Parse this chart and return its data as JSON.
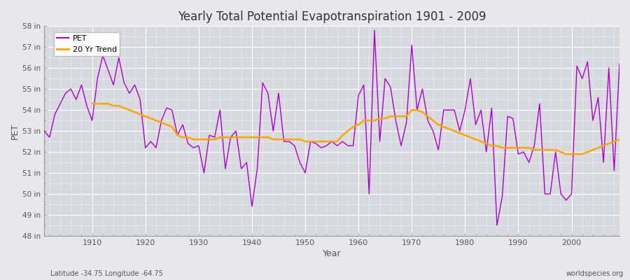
{
  "title": "Yearly Total Potential Evapotranspiration 1901 - 2009",
  "xlabel": "Year",
  "ylabel": "PET",
  "subtitle_left": "Latitude -34.75 Longitude -64.75",
  "subtitle_right": "worldspecies.org",
  "ylim": [
    48,
    58
  ],
  "xtick_years": [
    1910,
    1920,
    1930,
    1940,
    1950,
    1960,
    1970,
    1980,
    1990,
    2000
  ],
  "pet_color": "#AA00CC",
  "trend_color": "#FFA500",
  "bg_color": "#E8E8EC",
  "plot_bg_color": "#D8D8DF",
  "pet_years": [
    1901,
    1902,
    1903,
    1904,
    1905,
    1906,
    1907,
    1908,
    1909,
    1910,
    1911,
    1912,
    1913,
    1914,
    1915,
    1916,
    1917,
    1918,
    1919,
    1920,
    1921,
    1922,
    1923,
    1924,
    1925,
    1926,
    1927,
    1928,
    1929,
    1930,
    1931,
    1932,
    1933,
    1934,
    1935,
    1936,
    1937,
    1938,
    1939,
    1940,
    1941,
    1942,
    1943,
    1944,
    1945,
    1946,
    1947,
    1948,
    1949,
    1950,
    1951,
    1952,
    1953,
    1954,
    1955,
    1956,
    1957,
    1958,
    1959,
    1960,
    1961,
    1962,
    1963,
    1964,
    1965,
    1966,
    1967,
    1968,
    1969,
    1970,
    1971,
    1972,
    1973,
    1974,
    1975,
    1976,
    1977,
    1978,
    1979,
    1980,
    1981,
    1982,
    1983,
    1984,
    1985,
    1986,
    1987,
    1988,
    1989,
    1990,
    1991,
    1992,
    1993,
    1994,
    1995,
    1996,
    1997,
    1998,
    1999,
    2000,
    2001,
    2002,
    2003,
    2004,
    2005,
    2006,
    2007,
    2008,
    2009
  ],
  "pet_values": [
    53.0,
    52.7,
    53.8,
    54.3,
    54.8,
    55.0,
    54.5,
    55.2,
    54.2,
    53.5,
    55.5,
    56.6,
    55.9,
    55.2,
    56.5,
    55.3,
    54.8,
    55.2,
    54.5,
    52.2,
    52.5,
    52.2,
    53.5,
    54.1,
    54.0,
    52.8,
    53.3,
    52.4,
    52.2,
    52.3,
    51.0,
    52.8,
    52.7,
    54.0,
    51.2,
    52.7,
    53.0,
    51.2,
    51.5,
    49.4,
    51.2,
    55.3,
    54.8,
    53.0,
    54.8,
    52.5,
    52.5,
    52.3,
    51.5,
    51.0,
    52.5,
    52.4,
    52.2,
    52.3,
    52.5,
    52.3,
    52.5,
    52.3,
    52.3,
    54.7,
    55.2,
    50.0,
    57.8,
    52.5,
    55.5,
    55.1,
    53.5,
    52.3,
    53.4,
    57.1,
    54.0,
    55.0,
    53.5,
    53.0,
    52.1,
    54.0,
    54.0,
    54.0,
    53.0,
    54.0,
    55.5,
    53.3,
    54.0,
    52.0,
    54.1,
    48.5,
    49.9,
    53.7,
    53.6,
    51.9,
    52.0,
    51.5,
    52.3,
    54.3,
    50.0,
    50.0,
    52.0,
    50.0,
    49.7,
    50.0,
    56.1,
    55.5,
    56.3,
    53.5,
    54.6,
    51.5,
    56.0,
    51.1,
    56.2
  ],
  "trend_years": [
    1910,
    1911,
    1912,
    1913,
    1914,
    1915,
    1916,
    1917,
    1918,
    1919,
    1920,
    1921,
    1922,
    1923,
    1924,
    1925,
    1926,
    1927,
    1928,
    1929,
    1930,
    1931,
    1932,
    1933,
    1934,
    1935,
    1936,
    1937,
    1938,
    1939,
    1940,
    1941,
    1942,
    1943,
    1944,
    1945,
    1946,
    1947,
    1948,
    1949,
    1950,
    1951,
    1952,
    1953,
    1954,
    1955,
    1956,
    1957,
    1958,
    1959,
    1960,
    1961,
    1962,
    1963,
    1964,
    1965,
    1966,
    1967,
    1968,
    1969,
    1970,
    1971,
    1972,
    1973,
    1974,
    1975,
    1976,
    1977,
    1978,
    1979,
    1980,
    1981,
    1982,
    1983,
    1984,
    1985,
    1986,
    1987,
    1988,
    1989,
    1990,
    1991,
    1992,
    1993,
    1994,
    1995,
    1996,
    1997,
    1998,
    1999,
    2000,
    2001,
    2002,
    2003,
    2004,
    2005,
    2006,
    2007,
    2008,
    2009
  ],
  "trend_values": [
    54.3,
    54.3,
    54.3,
    54.3,
    54.2,
    54.2,
    54.1,
    54.0,
    53.9,
    53.8,
    53.7,
    53.6,
    53.5,
    53.4,
    53.3,
    53.2,
    52.8,
    52.7,
    52.7,
    52.6,
    52.6,
    52.6,
    52.6,
    52.6,
    52.7,
    52.7,
    52.7,
    52.7,
    52.7,
    52.7,
    52.7,
    52.7,
    52.7,
    52.7,
    52.6,
    52.6,
    52.6,
    52.6,
    52.6,
    52.6,
    52.5,
    52.5,
    52.5,
    52.5,
    52.5,
    52.5,
    52.5,
    52.8,
    53.0,
    53.2,
    53.3,
    53.5,
    53.5,
    53.5,
    53.6,
    53.6,
    53.7,
    53.7,
    53.7,
    53.7,
    54.0,
    54.0,
    53.9,
    53.7,
    53.5,
    53.3,
    53.2,
    53.1,
    53.0,
    52.9,
    52.8,
    52.7,
    52.6,
    52.5,
    52.4,
    52.3,
    52.3,
    52.2,
    52.2,
    52.2,
    52.2,
    52.2,
    52.2,
    52.1,
    52.1,
    52.1,
    52.1,
    52.1,
    52.0,
    51.9,
    51.9,
    51.9,
    51.9,
    52.0,
    52.1,
    52.2,
    52.3,
    52.4,
    52.5,
    52.6
  ]
}
